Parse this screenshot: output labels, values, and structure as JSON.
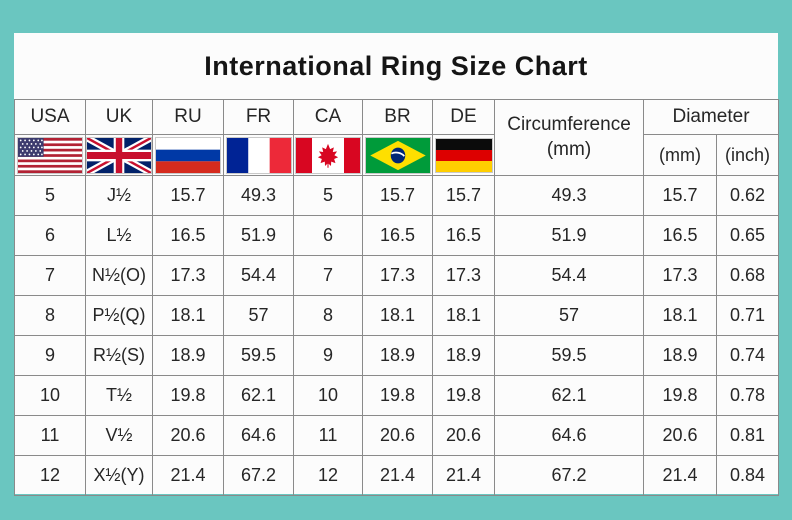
{
  "title": "International Ring Size Chart",
  "colors": {
    "background": "#6ac6c0",
    "panel": "#fcfcfc",
    "grid_line": "#8a8a8a",
    "text": "#262626"
  },
  "table": {
    "columns": {
      "usa": "USA",
      "uk": "UK",
      "ru": "RU",
      "fr": "FR",
      "ca": "CA",
      "br": "BR",
      "de": "DE",
      "circumference_label": "Circumference",
      "circumference_unit": "(mm)",
      "diameter_label": "Diameter",
      "diameter_mm": "(mm)",
      "diameter_inch": "(inch)"
    },
    "flag_icons": [
      "usa-flag-icon",
      "uk-flag-icon",
      "ru-flag-icon",
      "fr-flag-icon",
      "ca-flag-icon",
      "br-flag-icon",
      "de-flag-icon"
    ],
    "rows": [
      [
        "5",
        "J½",
        "15.7",
        "49.3",
        "5",
        "15.7",
        "15.7",
        "49.3",
        "15.7",
        "0.62"
      ],
      [
        "6",
        "L½",
        "16.5",
        "51.9",
        "6",
        "16.5",
        "16.5",
        "51.9",
        "16.5",
        "0.65"
      ],
      [
        "7",
        "N½(O)",
        "17.3",
        "54.4",
        "7",
        "17.3",
        "17.3",
        "54.4",
        "17.3",
        "0.68"
      ],
      [
        "8",
        "P½(Q)",
        "18.1",
        "57",
        "8",
        "18.1",
        "18.1",
        "57",
        "18.1",
        "0.71"
      ],
      [
        "9",
        "R½(S)",
        "18.9",
        "59.5",
        "9",
        "18.9",
        "18.9",
        "59.5",
        "18.9",
        "0.74"
      ],
      [
        "10",
        "T½",
        "19.8",
        "62.1",
        "10",
        "19.8",
        "19.8",
        "62.1",
        "19.8",
        "0.78"
      ],
      [
        "11",
        "V½",
        "20.6",
        "64.6",
        "11",
        "20.6",
        "20.6",
        "64.6",
        "20.6",
        "0.81"
      ],
      [
        "12",
        "X½(Y)",
        "21.4",
        "67.2",
        "12",
        "21.4",
        "21.4",
        "67.2",
        "21.4",
        "0.84"
      ]
    ]
  }
}
